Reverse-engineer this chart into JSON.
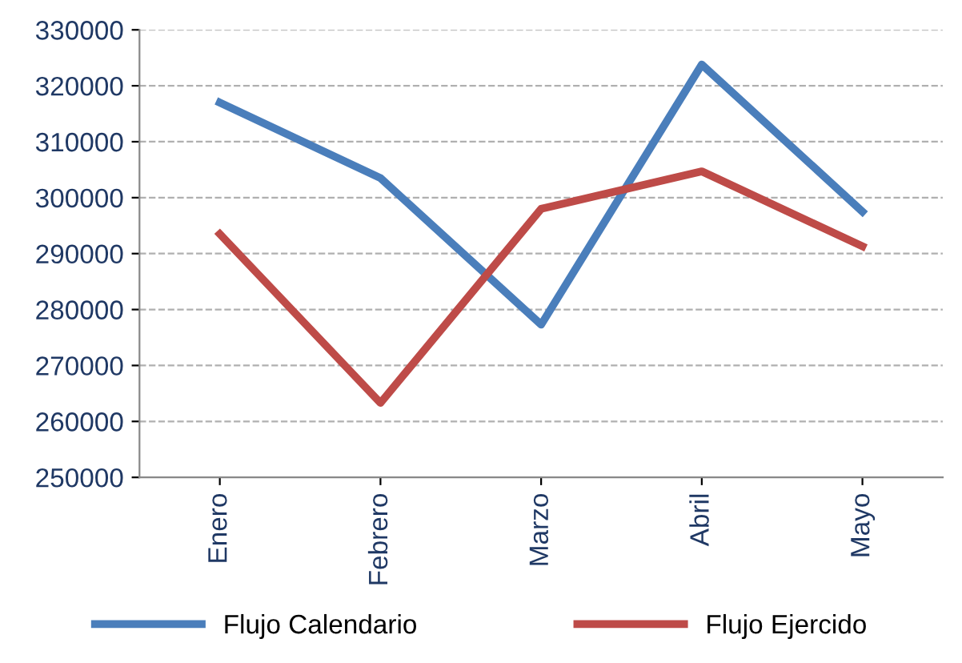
{
  "chart_data": {
    "type": "line",
    "categories": [
      "Enero",
      "Febrero",
      "Marzo",
      "Abril",
      "Mayo"
    ],
    "series": [
      {
        "name": "Flujo Calendario",
        "color": "#4a7ebb",
        "values": [
          317000,
          303500,
          277300,
          323800,
          297500
        ]
      },
      {
        "name": "Flujo Ejercido",
        "color": "#be4b48",
        "values": [
          293500,
          263300,
          298000,
          304700,
          291300
        ]
      }
    ],
    "ylim": [
      250000,
      330000
    ],
    "yticks": [
      250000,
      260000,
      270000,
      280000,
      290000,
      300000,
      310000,
      320000,
      330000
    ],
    "grid": "y",
    "legend": "bottom",
    "marker": "none",
    "line_style": "solid"
  }
}
